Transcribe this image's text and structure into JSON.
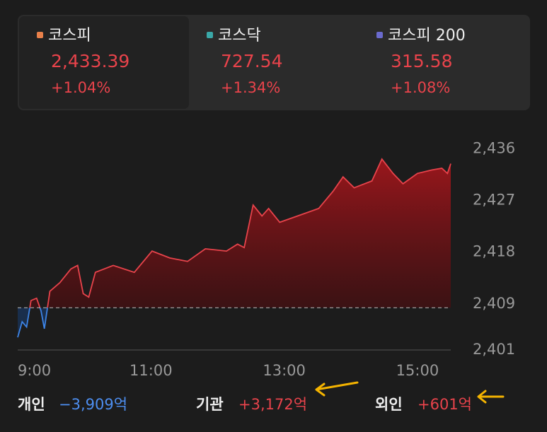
{
  "tabs": [
    {
      "name": "코스피",
      "price": "2,433.39",
      "change": "+1.04%",
      "color": "#e8804a"
    },
    {
      "name": "코스닥",
      "price": "727.54",
      "change": "+1.34%",
      "color": "#3aa8a8"
    },
    {
      "name": "코스피 200",
      "price": "315.58",
      "change": "+1.08%",
      "color": "#6a6acd"
    }
  ],
  "chart_data": {
    "type": "line",
    "x": [
      540,
      544,
      548,
      552,
      557,
      561,
      564,
      569,
      578,
      588,
      594,
      599,
      604,
      610,
      626,
      645,
      661,
      677,
      693,
      709,
      728,
      738,
      744,
      752,
      760,
      766,
      776,
      792,
      811,
      824,
      833,
      843,
      859,
      868,
      878,
      887,
      900,
      913,
      922,
      927,
      930
    ],
    "series": [
      {
        "name": "코스피",
        "color": "#e8434b",
        "values": [
          2403.2,
          2405.9,
          2405,
          2409.6,
          2410,
          2407.8,
          2404.7,
          2411.2,
          2412.7,
          2415.1,
          2415.7,
          2410.8,
          2410.2,
          2414.5,
          2415.7,
          2414.5,
          2418.2,
          2417,
          2416.4,
          2418.6,
          2418.2,
          2419.4,
          2418.8,
          2426.2,
          2424.3,
          2425.6,
          2423.2,
          2424.3,
          2425.6,
          2428.6,
          2431.1,
          2429.2,
          2430.4,
          2434.2,
          2431.7,
          2429.9,
          2431.7,
          2432.3,
          2432.6,
          2431.7,
          2433.4
        ]
      }
    ],
    "baseline": 2408.34,
    "below_color": "#3d84e6",
    "xlim": [
      540,
      930
    ],
    "xticks": [
      {
        "value": 540,
        "label": "9:00"
      },
      {
        "value": 660,
        "label": "11:00"
      },
      {
        "value": 780,
        "label": "13:00"
      },
      {
        "value": 900,
        "label": "15:00"
      }
    ],
    "ylim": [
      2401,
      2438.5
    ],
    "yticks": [
      {
        "value": 2436,
        "label": "2,436"
      },
      {
        "value": 2427,
        "label": "2,427"
      },
      {
        "value": 2418,
        "label": "2,418"
      },
      {
        "value": 2409,
        "label": "2,409"
      },
      {
        "value": 2401,
        "label": "2,401"
      }
    ]
  },
  "investors": [
    {
      "name": "개인",
      "amount": "−3,909억",
      "color": "#4d8ef0"
    },
    {
      "name": "기관",
      "amount": "+3,172억",
      "color": "#e8434b"
    },
    {
      "name": "외인",
      "amount": "+601억",
      "color": "#e8434b"
    }
  ]
}
